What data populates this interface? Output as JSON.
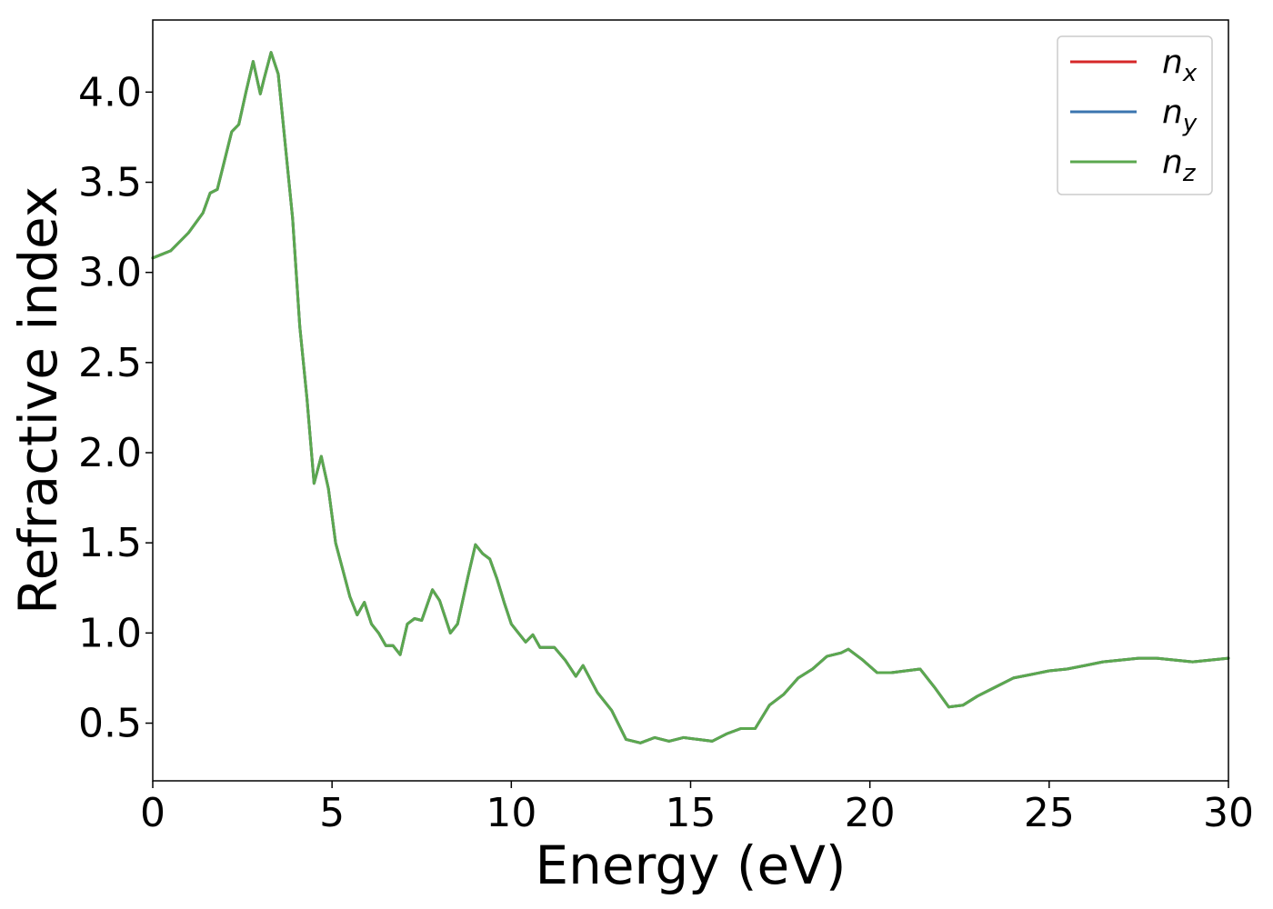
{
  "chart_data": {
    "type": "line",
    "xlabel": "Energy (eV)",
    "ylabel": "Refractive index",
    "xlim": [
      0,
      30
    ],
    "ylim": [
      0.18,
      4.4
    ],
    "xticks": [
      0,
      5,
      10,
      15,
      20,
      25,
      30
    ],
    "yticks": [
      0.5,
      1.0,
      1.5,
      2.0,
      2.5,
      3.0,
      3.5,
      4.0
    ],
    "grid": false,
    "legend_position": "top-right",
    "x": [
      0,
      0.5,
      1.0,
      1.4,
      1.6,
      1.8,
      2.0,
      2.2,
      2.4,
      2.6,
      2.8,
      3.0,
      3.1,
      3.3,
      3.5,
      3.7,
      3.9,
      4.1,
      4.3,
      4.5,
      4.7,
      4.9,
      5.1,
      5.3,
      5.5,
      5.7,
      5.9,
      6.1,
      6.3,
      6.5,
      6.7,
      6.9,
      7.1,
      7.3,
      7.5,
      7.8,
      8.0,
      8.3,
      8.5,
      8.8,
      9.0,
      9.2,
      9.4,
      9.6,
      9.8,
      10.0,
      10.2,
      10.4,
      10.6,
      10.8,
      11.2,
      11.5,
      11.8,
      12.0,
      12.4,
      12.8,
      13.2,
      13.6,
      14.0,
      14.4,
      14.8,
      15.2,
      15.6,
      16.0,
      16.4,
      16.8,
      17.2,
      17.6,
      18.0,
      18.4,
      18.8,
      19.2,
      19.4,
      19.8,
      20.2,
      20.6,
      21.0,
      21.4,
      21.8,
      22.2,
      22.6,
      23.0,
      23.5,
      24.0,
      24.5,
      25.0,
      25.5,
      26.0,
      26.5,
      27.0,
      27.5,
      28.0,
      28.5,
      29.0,
      29.5,
      30.0
    ],
    "series": [
      {
        "name": "n_x",
        "color": "#d62728",
        "values": [
          3.08,
          3.12,
          3.22,
          3.33,
          3.44,
          3.46,
          3.62,
          3.78,
          3.82,
          4.0,
          4.17,
          3.99,
          4.07,
          4.22,
          4.1,
          3.7,
          3.3,
          2.7,
          2.3,
          1.83,
          1.98,
          1.8,
          1.5,
          1.35,
          1.2,
          1.1,
          1.17,
          1.05,
          1.0,
          0.93,
          0.93,
          0.88,
          1.05,
          1.08,
          1.07,
          1.24,
          1.18,
          1.0,
          1.05,
          1.32,
          1.49,
          1.44,
          1.41,
          1.3,
          1.17,
          1.05,
          1.0,
          0.95,
          0.99,
          0.92,
          0.92,
          0.85,
          0.76,
          0.82,
          0.67,
          0.57,
          0.41,
          0.39,
          0.42,
          0.4,
          0.42,
          0.41,
          0.4,
          0.44,
          0.47,
          0.47,
          0.6,
          0.66,
          0.75,
          0.8,
          0.87,
          0.89,
          0.91,
          0.85,
          0.78,
          0.78,
          0.79,
          0.8,
          0.7,
          0.59,
          0.6,
          0.65,
          0.7,
          0.75,
          0.77,
          0.79,
          0.8,
          0.82,
          0.84,
          0.85,
          0.86,
          0.86,
          0.85,
          0.84,
          0.85,
          0.86
        ]
      },
      {
        "name": "n_y",
        "color": "#3b75af",
        "values": [
          3.08,
          3.12,
          3.22,
          3.33,
          3.44,
          3.46,
          3.62,
          3.78,
          3.82,
          4.0,
          4.17,
          3.99,
          4.07,
          4.22,
          4.1,
          3.7,
          3.3,
          2.7,
          2.3,
          1.83,
          1.98,
          1.8,
          1.5,
          1.35,
          1.2,
          1.1,
          1.17,
          1.05,
          1.0,
          0.93,
          0.93,
          0.88,
          1.05,
          1.08,
          1.07,
          1.24,
          1.18,
          1.0,
          1.05,
          1.32,
          1.49,
          1.44,
          1.41,
          1.3,
          1.17,
          1.05,
          1.0,
          0.95,
          0.99,
          0.92,
          0.92,
          0.85,
          0.76,
          0.82,
          0.67,
          0.57,
          0.41,
          0.39,
          0.42,
          0.4,
          0.42,
          0.41,
          0.4,
          0.44,
          0.47,
          0.47,
          0.6,
          0.66,
          0.75,
          0.8,
          0.87,
          0.89,
          0.91,
          0.85,
          0.78,
          0.78,
          0.79,
          0.8,
          0.7,
          0.59,
          0.6,
          0.65,
          0.7,
          0.75,
          0.77,
          0.79,
          0.8,
          0.82,
          0.84,
          0.85,
          0.86,
          0.86,
          0.85,
          0.84,
          0.85,
          0.86
        ]
      },
      {
        "name": "n_z",
        "color": "#5ba84f",
        "values": [
          3.08,
          3.12,
          3.22,
          3.33,
          3.44,
          3.46,
          3.62,
          3.78,
          3.82,
          4.0,
          4.17,
          3.99,
          4.07,
          4.22,
          4.1,
          3.7,
          3.3,
          2.7,
          2.3,
          1.83,
          1.98,
          1.8,
          1.5,
          1.35,
          1.2,
          1.1,
          1.17,
          1.05,
          1.0,
          0.93,
          0.93,
          0.88,
          1.05,
          1.08,
          1.07,
          1.24,
          1.18,
          1.0,
          1.05,
          1.32,
          1.49,
          1.44,
          1.41,
          1.3,
          1.17,
          1.05,
          1.0,
          0.95,
          0.99,
          0.92,
          0.92,
          0.85,
          0.76,
          0.82,
          0.67,
          0.57,
          0.41,
          0.39,
          0.42,
          0.4,
          0.42,
          0.41,
          0.4,
          0.44,
          0.47,
          0.47,
          0.6,
          0.66,
          0.75,
          0.8,
          0.87,
          0.89,
          0.91,
          0.85,
          0.78,
          0.78,
          0.79,
          0.8,
          0.7,
          0.59,
          0.6,
          0.65,
          0.7,
          0.75,
          0.77,
          0.79,
          0.8,
          0.82,
          0.84,
          0.85,
          0.86,
          0.86,
          0.85,
          0.84,
          0.85,
          0.86
        ]
      }
    ],
    "legend": [
      {
        "base": "n",
        "sub": "x",
        "color": "#d62728"
      },
      {
        "base": "n",
        "sub": "y",
        "color": "#3b75af"
      },
      {
        "base": "n",
        "sub": "z",
        "color": "#5ba84f"
      }
    ]
  }
}
